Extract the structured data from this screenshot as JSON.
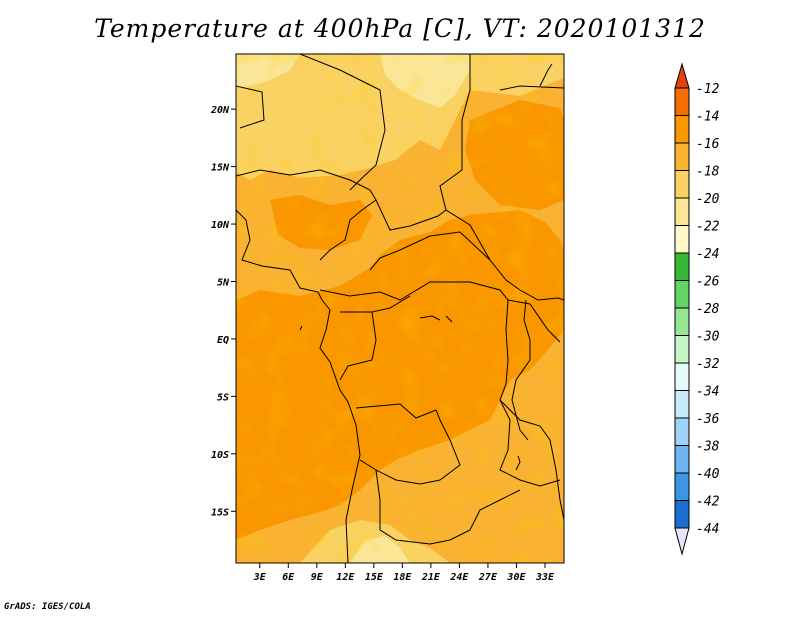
{
  "chart_data": {
    "type": "heatmap",
    "title": "Temperature at 400hPa [C], VT: 2020101312",
    "x_ticks": [
      "3E",
      "6E",
      "9E",
      "12E",
      "15E",
      "18E",
      "21E",
      "24E",
      "27E",
      "30E",
      "33E"
    ],
    "x_tick_values": [
      3,
      6,
      9,
      12,
      15,
      18,
      21,
      24,
      27,
      30,
      33
    ],
    "y_ticks": [
      "20N",
      "15N",
      "10N",
      "5N",
      "EQ",
      "5S",
      "10S",
      "15S"
    ],
    "y_tick_values": [
      20,
      15,
      10,
      5,
      0,
      -5,
      -10,
      -15
    ],
    "xlim": [
      0.5,
      35
    ],
    "ylim": [
      -19.5,
      24.8
    ],
    "colorbar": {
      "levels": [
        -12,
        -14,
        -16,
        -18,
        -20,
        -22,
        -24,
        -26,
        -28,
        -30,
        -32,
        -34,
        -36,
        -38,
        -40,
        -42,
        -44
      ],
      "colors": [
        "#e8400c",
        "#f56e00",
        "#fa9600",
        "#fab232",
        "#fad264",
        "#fae696",
        "#fff8c8",
        "#36b936",
        "#64d264",
        "#96e696",
        "#c8f5c8",
        "#e6fafa",
        "#c8ebfa",
        "#a0d2fa",
        "#6eb4f0",
        "#3c96e6",
        "#1e6ed2",
        "#1450b4",
        "#0a2896",
        "#0a0a64",
        "#e6e6fa"
      ],
      "top_arrow_color": "#e8400c",
      "bottom_arrow_color": "#e6e6fa"
    },
    "regions": [
      {
        "level": "-18 to -16",
        "color": "#fab232"
      },
      {
        "level": "-16 to -14",
        "color": "#fa9600"
      },
      {
        "level": "-20 to -18",
        "color": "#fad264"
      },
      {
        "level": "-22 to -20",
        "color": "#fae696"
      }
    ]
  },
  "credit": "GrADS: IGES/COLA"
}
